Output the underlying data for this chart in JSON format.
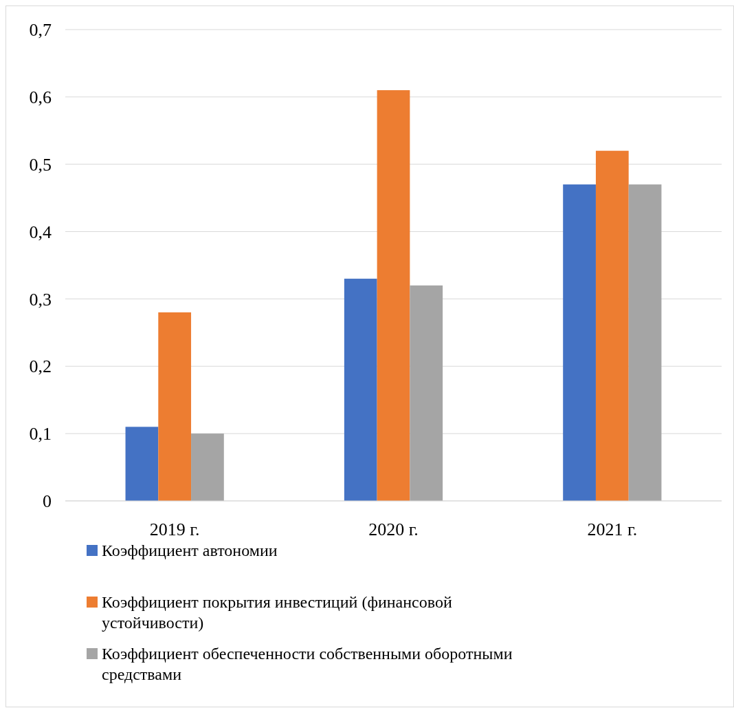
{
  "chart_data": {
    "type": "bar",
    "categories": [
      "2019 г.",
      "2020 г.",
      "2021 г."
    ],
    "series": [
      {
        "name": "Коэффициент автономии",
        "color": "#4472c4",
        "values": [
          0.11,
          0.33,
          0.47
        ]
      },
      {
        "name": "Коэффициент покрытия инвестиций (финансовой устойчивости)",
        "color": "#ed7d31",
        "values": [
          0.28,
          0.61,
          0.52
        ]
      },
      {
        "name": "Коэффициент обеспеченности собственными оборотными средствами",
        "color": "#a5a5a5",
        "values": [
          0.1,
          0.32,
          0.47
        ]
      }
    ],
    "ylim": [
      0,
      0.7
    ],
    "yticks": [
      {
        "value": 0,
        "label": "0"
      },
      {
        "value": 0.1,
        "label": "0,1"
      },
      {
        "value": 0.2,
        "label": "0,2"
      },
      {
        "value": 0.3,
        "label": "0,3"
      },
      {
        "value": 0.4,
        "label": "0,4"
      },
      {
        "value": 0.5,
        "label": "0,5"
      },
      {
        "value": 0.6,
        "label": "0,6"
      },
      {
        "value": 0.7,
        "label": "0,7"
      }
    ],
    "grid": "y",
    "legend": "bottom"
  }
}
